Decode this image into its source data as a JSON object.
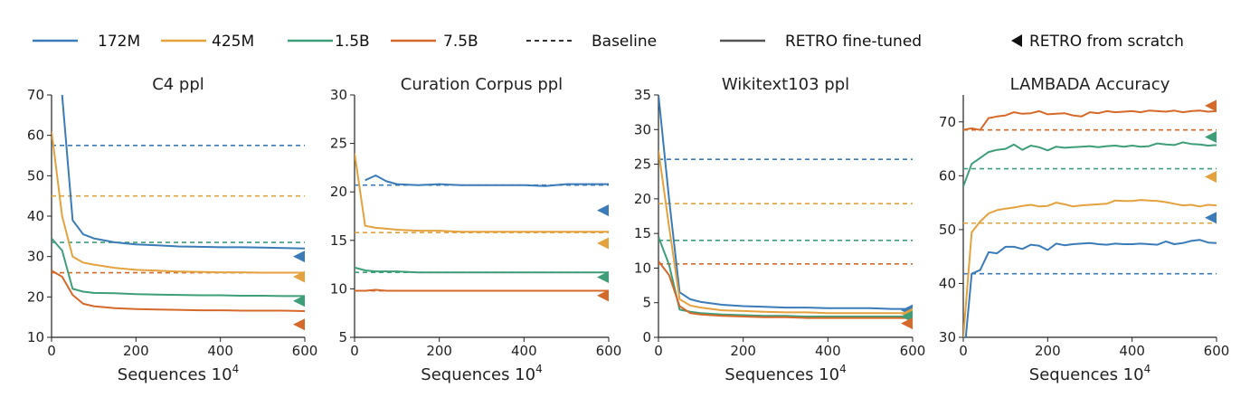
{
  "legend": {
    "items": [
      {
        "label": "172M",
        "color": "#3a7bb8",
        "kind": "line"
      },
      {
        "label": "425M",
        "color": "#e3a23e",
        "kind": "line"
      },
      {
        "label": "1.5B",
        "color": "#3d9e78",
        "kind": "line"
      },
      {
        "label": "7.5B",
        "color": "#d5692a",
        "kind": "line"
      },
      {
        "label": "Baseline",
        "color": "#333333",
        "kind": "dashed"
      },
      {
        "label": "RETRO fine-tuned",
        "color": "#555555",
        "kind": "solid"
      },
      {
        "label": "RETRO from scratch",
        "color": "#111111",
        "kind": "triangle"
      }
    ]
  },
  "colors": {
    "172M": "#3a7bb8",
    "425M": "#e3a23e",
    "1.5B": "#3d9e78",
    "7.5B": "#d5692a"
  },
  "chart_data": [
    {
      "type": "line",
      "title": "C4 ppl",
      "xlabel": "Sequences 10",
      "xlabel_sup": "4",
      "xlim": [
        0,
        600
      ],
      "ylim": [
        10,
        70
      ],
      "xticks": [
        "0",
        "200",
        "400",
        "600"
      ],
      "yticks": [
        "10",
        "20",
        "30",
        "40",
        "50",
        "60",
        "70"
      ],
      "x": [
        0,
        25,
        50,
        75,
        100,
        150,
        200,
        250,
        300,
        350,
        400,
        450,
        500,
        550,
        600
      ],
      "series": [
        {
          "name": "172M",
          "values": [
            null,
            70,
            39,
            35.5,
            34.5,
            33.5,
            33,
            32.8,
            32.5,
            32.4,
            32.3,
            32.3,
            32.2,
            32.1,
            32
          ]
        },
        {
          "name": "425M",
          "values": [
            61,
            40,
            30,
            28.5,
            28,
            27.2,
            26.7,
            26.5,
            26.3,
            26.2,
            26.1,
            26.1,
            26,
            26,
            26
          ]
        },
        {
          "name": "1.5B",
          "values": [
            34.5,
            31.5,
            22,
            21.3,
            21,
            20.9,
            20.7,
            20.6,
            20.5,
            20.4,
            20.4,
            20.3,
            20.3,
            20.2,
            20.2
          ]
        },
        {
          "name": "7.5B",
          "values": [
            26.5,
            25,
            20.5,
            18.3,
            17.7,
            17.2,
            17,
            16.9,
            16.8,
            16.7,
            16.7,
            16.6,
            16.6,
            16.6,
            16.5
          ]
        }
      ],
      "baselines": {
        "172M": 57.5,
        "425M": 45,
        "1.5B": 33.5,
        "7.5B": 26
      },
      "scratch": {
        "172M": 30,
        "425M": 25,
        "1.5B": 19,
        "7.5B": 13.2
      }
    },
    {
      "type": "line",
      "title": "Curation Corpus ppl",
      "xlabel": "Sequences 10",
      "xlabel_sup": "4",
      "xlim": [
        0,
        600
      ],
      "ylim": [
        5,
        30
      ],
      "xticks": [
        "0",
        "200",
        "400",
        "600"
      ],
      "yticks": [
        "5",
        "10",
        "15",
        "20",
        "25",
        "30"
      ],
      "x": [
        0,
        25,
        50,
        75,
        100,
        150,
        200,
        250,
        300,
        350,
        400,
        450,
        500,
        550,
        600
      ],
      "series": [
        {
          "name": "172M",
          "values": [
            null,
            21.2,
            21.7,
            21.1,
            20.8,
            20.7,
            20.8,
            20.7,
            20.7,
            20.7,
            20.7,
            20.6,
            20.8,
            20.8,
            20.8
          ]
        },
        {
          "name": "425M",
          "values": [
            24,
            16.5,
            16.3,
            16.2,
            16.1,
            16,
            16,
            15.9,
            15.9,
            15.9,
            15.9,
            15.9,
            15.9,
            15.9,
            15.9
          ]
        },
        {
          "name": "1.5B",
          "values": [
            12.2,
            11.9,
            11.8,
            11.8,
            11.8,
            11.7,
            11.7,
            11.7,
            11.7,
            11.7,
            11.7,
            11.7,
            11.7,
            11.7,
            11.7
          ]
        },
        {
          "name": "7.5B",
          "values": [
            9.8,
            9.8,
            9.9,
            9.8,
            9.8,
            9.8,
            9.8,
            9.8,
            9.8,
            9.8,
            9.8,
            9.8,
            9.8,
            9.8,
            9.8
          ]
        }
      ],
      "baselines": {
        "172M": 20.7,
        "425M": 15.8,
        "1.5B": 11.7,
        "7.5B": 9.8
      },
      "scratch": {
        "172M": 18.1,
        "425M": 14.7,
        "1.5B": 11.2,
        "7.5B": 9.3
      }
    },
    {
      "type": "line",
      "title": "Wikitext103 ppl",
      "xlabel": "Sequences 10",
      "xlabel_sup": "4",
      "xlim": [
        0,
        600
      ],
      "ylim": [
        0,
        35
      ],
      "xticks": [
        "0",
        "200",
        "400",
        "600"
      ],
      "yticks": [
        "0",
        "5",
        "10",
        "15",
        "20",
        "25",
        "30",
        "35"
      ],
      "x": [
        0,
        25,
        50,
        75,
        100,
        150,
        200,
        250,
        300,
        350,
        400,
        450,
        500,
        550,
        600
      ],
      "series": [
        {
          "name": "172M",
          "values": [
            35,
            20,
            6.5,
            5.5,
            5.1,
            4.7,
            4.5,
            4.4,
            4.3,
            4.3,
            4.2,
            4.2,
            4.2,
            4.1,
            4.1
          ]
        },
        {
          "name": "425M",
          "values": [
            27,
            16,
            5.5,
            4.6,
            4.3,
            3.9,
            3.8,
            3.7,
            3.6,
            3.6,
            3.5,
            3.5,
            3.5,
            3.5,
            3.5
          ]
        },
        {
          "name": "1.5B",
          "values": [
            14.5,
            10.5,
            4.0,
            3.7,
            3.5,
            3.3,
            3.2,
            3.1,
            3.1,
            3.0,
            3.0,
            3.0,
            3.0,
            3.0,
            3.0
          ]
        },
        {
          "name": "7.5B",
          "values": [
            11,
            9,
            4.5,
            3.5,
            3.3,
            3.1,
            3.0,
            2.9,
            2.9,
            2.8,
            2.8,
            2.8,
            2.8,
            2.8,
            2.8
          ]
        }
      ],
      "baselines": {
        "172M": 25.7,
        "425M": 19.3,
        "1.5B": 14,
        "7.5B": 10.6
      },
      "scratch": {
        "172M": 3.9,
        "425M": 3.4,
        "1.5B": 3.0,
        "7.5B": 2.0
      }
    },
    {
      "type": "line",
      "title": "LAMBADA Accuracy",
      "xlabel": "Sequences 10",
      "xlabel_sup": "4",
      "xlim": [
        0,
        600
      ],
      "ylim": [
        30,
        75
      ],
      "xticks": [
        "0",
        "200",
        "400",
        "600"
      ],
      "yticks": [
        "30",
        "40",
        "50",
        "60",
        "70"
      ],
      "x": [
        0,
        20,
        40,
        60,
        80,
        100,
        120,
        140,
        160,
        180,
        200,
        220,
        240,
        260,
        280,
        300,
        320,
        340,
        360,
        380,
        400,
        420,
        440,
        460,
        480,
        500,
        520,
        540,
        560,
        580,
        600
      ],
      "series": [
        {
          "name": "172M",
          "values": [
            25,
            41.8,
            42.5,
            45.8,
            45.6,
            46.8,
            46.8,
            46.4,
            47.2,
            47.0,
            46.2,
            47.4,
            47.1,
            47.3,
            47.4,
            47.5,
            47.3,
            47.2,
            47.4,
            47.3,
            47.3,
            47.4,
            47.3,
            47.2,
            47.8,
            47.3,
            47.5,
            47.9,
            48.1,
            47.6,
            47.5
          ]
        },
        {
          "name": "425M",
          "values": [
            30,
            49.5,
            51.5,
            53,
            53.6,
            53.9,
            54.1,
            54.4,
            54.6,
            54.3,
            54.4,
            55,
            54.7,
            54.3,
            54.5,
            54.6,
            54.7,
            54.8,
            55.4,
            55.3,
            55.3,
            55.5,
            55.4,
            55.3,
            55.1,
            54.8,
            54.5,
            54.6,
            54.3,
            54.6,
            54.5
          ]
        },
        {
          "name": "1.5B",
          "values": [
            58,
            62.2,
            63.3,
            64.4,
            64.8,
            65.0,
            65.8,
            64.8,
            65.6,
            65.3,
            64.7,
            65.4,
            65.2,
            65.3,
            65.4,
            65.5,
            65.3,
            65.5,
            65.6,
            65.4,
            65.6,
            65.4,
            65.5,
            66.0,
            65.8,
            65.7,
            66.2,
            65.9,
            65.8,
            65.6,
            65.7
          ]
        },
        {
          "name": "7.5B",
          "values": [
            68.5,
            68.8,
            68.5,
            70.7,
            71.0,
            71.2,
            71.8,
            71.5,
            71.6,
            72.0,
            71.4,
            71.5,
            71.6,
            71.2,
            71.0,
            71.8,
            71.6,
            72.0,
            71.8,
            71.9,
            72.0,
            71.8,
            72.1,
            72.0,
            71.9,
            72.1,
            71.8,
            72.0,
            72.1,
            71.9,
            72.0
          ]
        }
      ],
      "baselines": {
        "172M": 41.8,
        "425M": 51.2,
        "1.5B": 61.3,
        "7.5B": 68.5
      },
      "scratch": {
        "172M": 52.2,
        "425M": 59.8,
        "1.5B": 67.2,
        "7.5B": 73.0
      }
    }
  ]
}
